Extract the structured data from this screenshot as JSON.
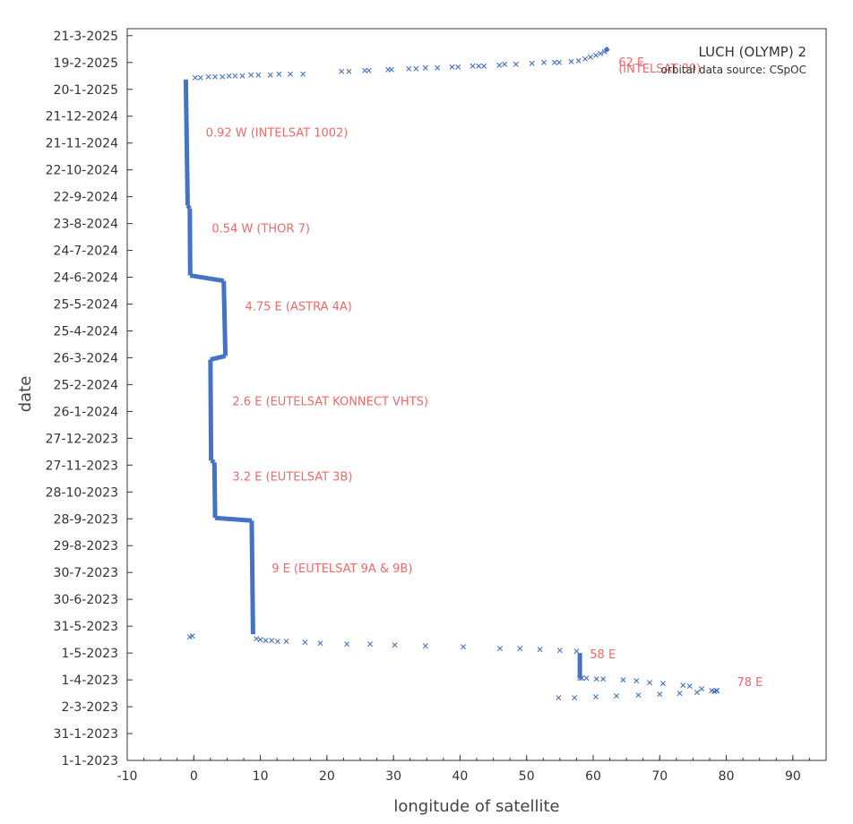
{
  "chart_data": {
    "type": "scatter",
    "title": "LUCH (OLYMP) 2",
    "subtitle": "orbital data source:  CSpOC",
    "xlabel": "longitude of satellite",
    "ylabel": "date",
    "xlim": [
      -10,
      95
    ],
    "xticks": [
      -10,
      0,
      10,
      20,
      30,
      40,
      50,
      60,
      70,
      80,
      90
    ],
    "ylim": [
      0,
      814
    ],
    "yticks": [
      {
        "label": "1-1-2023",
        "day": 0
      },
      {
        "label": "31-1-2023",
        "day": 30
      },
      {
        "label": "2-3-2023",
        "day": 60
      },
      {
        "label": "1-4-2023",
        "day": 90
      },
      {
        "label": "1-5-2023",
        "day": 120
      },
      {
        "label": "31-5-2023",
        "day": 150
      },
      {
        "label": "30-6-2023",
        "day": 180
      },
      {
        "label": "30-7-2023",
        "day": 210
      },
      {
        "label": "29-8-2023",
        "day": 240
      },
      {
        "label": "28-9-2023",
        "day": 270
      },
      {
        "label": "28-10-2023",
        "day": 300
      },
      {
        "label": "27-11-2023",
        "day": 330
      },
      {
        "label": "27-12-2023",
        "day": 360
      },
      {
        "label": "26-1-2024",
        "day": 390
      },
      {
        "label": "25-2-2024",
        "day": 420
      },
      {
        "label": "26-3-2024",
        "day": 450
      },
      {
        "label": "25-4-2024",
        "day": 480
      },
      {
        "label": "25-5-2024",
        "day": 510
      },
      {
        "label": "24-6-2024",
        "day": 540
      },
      {
        "label": "24-7-2024",
        "day": 570
      },
      {
        "label": "23-8-2024",
        "day": 600
      },
      {
        "label": "22-9-2024",
        "day": 630
      },
      {
        "label": "22-10-2024",
        "day": 660
      },
      {
        "label": "21-11-2024",
        "day": 690
      },
      {
        "label": "21-12-2024",
        "day": 720
      },
      {
        "label": "20-1-2025",
        "day": 750
      },
      {
        "label": "19-2-2025",
        "day": 780
      },
      {
        "label": "21-3-2025",
        "day": 810
      }
    ],
    "station_segments": [
      {
        "lon_start": 58.0,
        "lon_end": 58.0,
        "day_start": 92,
        "day_end": 120
      },
      {
        "lon_start": 8.9,
        "lon_end": 8.7,
        "day_start": 141,
        "day_end": 268
      },
      {
        "lon_start": 3.2,
        "lon_end": 3.1,
        "day_start": 271,
        "day_end": 333
      },
      {
        "lon_start": 2.6,
        "lon_end": 2.5,
        "day_start": 335,
        "day_end": 448
      },
      {
        "lon_start": 4.75,
        "lon_end": 4.5,
        "day_start": 452,
        "day_end": 536
      },
      {
        "lon_start": -0.54,
        "lon_end": -0.6,
        "day_start": 542,
        "day_end": 617
      },
      {
        "lon_start": -0.92,
        "lon_end": -1.2,
        "day_start": 620,
        "day_end": 761
      },
      {
        "lon_start": 61.8,
        "lon_end": 62.3,
        "day_start": 793,
        "day_end": 796
      }
    ],
    "drift_points": [
      {
        "lon": 54.8,
        "day": 70
      },
      {
        "lon": 57.2,
        "day": 70
      },
      {
        "lon": 60.4,
        "day": 71
      },
      {
        "lon": 63.5,
        "day": 72
      },
      {
        "lon": 66.8,
        "day": 73
      },
      {
        "lon": 70.0,
        "day": 74
      },
      {
        "lon": 73.0,
        "day": 75
      },
      {
        "lon": 75.6,
        "day": 76
      },
      {
        "lon": 78.2,
        "day": 77
      },
      {
        "lon": 78.5,
        "day": 78
      },
      {
        "lon": 77.8,
        "day": 78
      },
      {
        "lon": 78.6,
        "day": 78
      },
      {
        "lon": 76.3,
        "day": 80
      },
      {
        "lon": 74.5,
        "day": 83
      },
      {
        "lon": 73.5,
        "day": 84
      },
      {
        "lon": 70.5,
        "day": 86
      },
      {
        "lon": 68.5,
        "day": 87
      },
      {
        "lon": 66.5,
        "day": 89
      },
      {
        "lon": 64.5,
        "day": 90
      },
      {
        "lon": 61.5,
        "day": 91
      },
      {
        "lon": 60.5,
        "day": 91
      },
      {
        "lon": 59.0,
        "day": 92
      },
      {
        "lon": 57.5,
        "day": 122
      },
      {
        "lon": 55.0,
        "day": 123
      },
      {
        "lon": 52.0,
        "day": 124
      },
      {
        "lon": 49.0,
        "day": 125
      },
      {
        "lon": 46.0,
        "day": 125
      },
      {
        "lon": 40.5,
        "day": 127
      },
      {
        "lon": 34.8,
        "day": 128
      },
      {
        "lon": 30.2,
        "day": 129
      },
      {
        "lon": 26.5,
        "day": 130
      },
      {
        "lon": 23.0,
        "day": 130
      },
      {
        "lon": 19.0,
        "day": 131
      },
      {
        "lon": 16.7,
        "day": 132
      },
      {
        "lon": 13.9,
        "day": 133
      },
      {
        "lon": 12.6,
        "day": 133
      },
      {
        "lon": 11.7,
        "day": 134
      },
      {
        "lon": 10.8,
        "day": 134
      },
      {
        "lon": 10.0,
        "day": 135
      },
      {
        "lon": 9.4,
        "day": 136
      },
      {
        "lon": 16.4,
        "day": 767
      },
      {
        "lon": 14.5,
        "day": 767
      },
      {
        "lon": 12.8,
        "day": 767
      },
      {
        "lon": 11.5,
        "day": 766
      },
      {
        "lon": 9.7,
        "day": 766
      },
      {
        "lon": 8.6,
        "day": 766
      },
      {
        "lon": 7.3,
        "day": 765
      },
      {
        "lon": 6.2,
        "day": 765
      },
      {
        "lon": 5.3,
        "day": 765
      },
      {
        "lon": 4.3,
        "day": 764
      },
      {
        "lon": 3.2,
        "day": 764
      },
      {
        "lon": 2.2,
        "day": 764
      },
      {
        "lon": 1.0,
        "day": 763
      },
      {
        "lon": 0.2,
        "day": 763
      },
      {
        "lon": 22.2,
        "day": 770
      },
      {
        "lon": 23.3,
        "day": 770
      },
      {
        "lon": 25.7,
        "day": 771
      },
      {
        "lon": 26.3,
        "day": 771
      },
      {
        "lon": 29.2,
        "day": 772
      },
      {
        "lon": 29.7,
        "day": 772
      },
      {
        "lon": 32.3,
        "day": 773
      },
      {
        "lon": 33.4,
        "day": 773
      },
      {
        "lon": 34.8,
        "day": 774
      },
      {
        "lon": 36.6,
        "day": 774
      },
      {
        "lon": 38.8,
        "day": 775
      },
      {
        "lon": 39.7,
        "day": 775
      },
      {
        "lon": 41.9,
        "day": 776
      },
      {
        "lon": 42.8,
        "day": 776
      },
      {
        "lon": 43.6,
        "day": 776
      },
      {
        "lon": 45.9,
        "day": 777
      },
      {
        "lon": 46.7,
        "day": 778
      },
      {
        "lon": 48.4,
        "day": 778
      },
      {
        "lon": 50.8,
        "day": 779
      },
      {
        "lon": 52.6,
        "day": 780
      },
      {
        "lon": 54.2,
        "day": 780
      },
      {
        "lon": 54.9,
        "day": 780
      },
      {
        "lon": 56.7,
        "day": 781
      },
      {
        "lon": 57.8,
        "day": 782
      },
      {
        "lon": 58.8,
        "day": 784
      },
      {
        "lon": 59.6,
        "day": 786
      },
      {
        "lon": 60.4,
        "day": 788
      },
      {
        "lon": 61.1,
        "day": 790
      },
      {
        "lon": 61.7,
        "day": 792
      },
      {
        "lon": -0.6,
        "day": 138
      },
      {
        "lon": -0.2,
        "day": 139
      }
    ],
    "transition_points": [
      {
        "lon": 58.0,
        "day": 92
      },
      {
        "lon": 58.3,
        "day": 92
      }
    ],
    "ramps": [
      {
        "lon_start": 8.7,
        "lon_end": 3.2,
        "day_start": 268,
        "day_end": 271
      },
      {
        "lon_start": 3.1,
        "lon_end": 2.6,
        "day_start": 333,
        "day_end": 335
      },
      {
        "lon_start": 2.5,
        "lon_end": 4.75,
        "day_start": 448,
        "day_end": 452
      },
      {
        "lon_start": 4.5,
        "lon_end": -0.54,
        "day_start": 536,
        "day_end": 542
      },
      {
        "lon_start": -0.6,
        "lon_end": -0.92,
        "day_start": 617,
        "day_end": 620
      }
    ],
    "annotations": [
      {
        "text": "62 E",
        "lon": 63.8,
        "day": 776
      },
      {
        "text": "(INTELSAT 39)",
        "lon": 63.8,
        "day": 769
      },
      {
        "text": "0.92 W   (INTELSAT 1002)",
        "lon": 1.8,
        "day": 697
      },
      {
        "text": "0.54 W   (THOR 7)",
        "lon": 2.7,
        "day": 590
      },
      {
        "text": "4.75 E   (ASTRA 4A)",
        "lon": 7.7,
        "day": 503
      },
      {
        "text": "2.6 E   (EUTELSAT KONNECT VHTS)",
        "lon": 5.8,
        "day": 397
      },
      {
        "text": "3.2 E   (EUTELSAT 3B)",
        "lon": 5.8,
        "day": 313
      },
      {
        "text": "9 E   (EUTELSAT 9A & 9B)",
        "lon": 11.7,
        "day": 210
      },
      {
        "text": "58 E",
        "lon": 59.5,
        "day": 114
      },
      {
        "text": "78 E",
        "lon": 81.6,
        "day": 83
      }
    ]
  }
}
